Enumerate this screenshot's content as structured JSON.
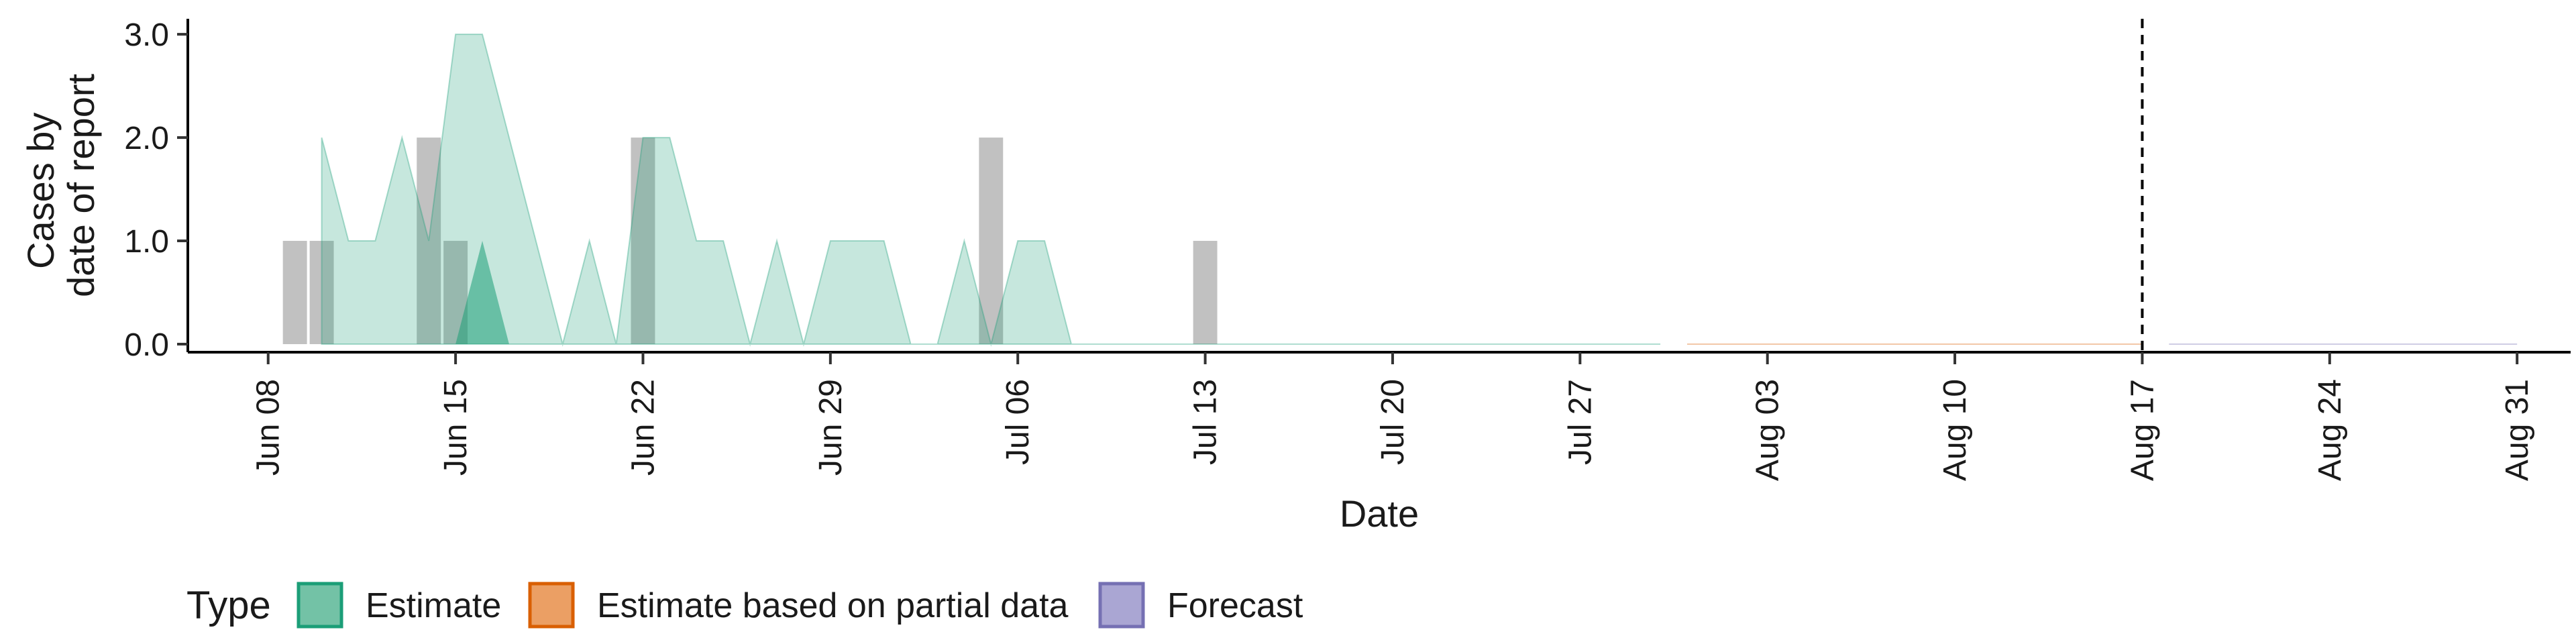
{
  "chart_data": {
    "type": "area",
    "xlabel": "Date",
    "ylabel": [
      "Cases by",
      "date of report"
    ],
    "ylim": [
      0,
      3.15
    ],
    "y_ticks": [
      {
        "value": 0,
        "label": "0.0"
      },
      {
        "value": 1,
        "label": "1.0"
      },
      {
        "value": 2,
        "label": "2.0"
      },
      {
        "value": 3,
        "label": "3.0"
      }
    ],
    "x_ticks": [
      {
        "date": "2020-06-08",
        "label": "Jun 08"
      },
      {
        "date": "2020-06-15",
        "label": "Jun 15"
      },
      {
        "date": "2020-06-22",
        "label": "Jun 22"
      },
      {
        "date": "2020-06-29",
        "label": "Jun 29"
      },
      {
        "date": "2020-07-06",
        "label": "Jul 06"
      },
      {
        "date": "2020-07-13",
        "label": "Jul 13"
      },
      {
        "date": "2020-07-20",
        "label": "Jul 20"
      },
      {
        "date": "2020-07-27",
        "label": "Jul 27"
      },
      {
        "date": "2020-08-03",
        "label": "Aug 03"
      },
      {
        "date": "2020-08-10",
        "label": "Aug 10"
      },
      {
        "date": "2020-08-17",
        "label": "Aug 17"
      },
      {
        "date": "2020-08-24",
        "label": "Aug 24"
      },
      {
        "date": "2020-08-31",
        "label": "Aug 31"
      }
    ],
    "x_range": [
      "2020-06-05",
      "2020-09-02"
    ],
    "reported_cases": [
      {
        "date": "2020-06-09",
        "value": 1
      },
      {
        "date": "2020-06-10",
        "value": 1
      },
      {
        "date": "2020-06-14",
        "value": 2
      },
      {
        "date": "2020-06-15",
        "value": 1
      },
      {
        "date": "2020-06-22",
        "value": 2
      },
      {
        "date": "2020-07-05",
        "value": 2
      },
      {
        "date": "2020-07-13",
        "value": 1
      }
    ],
    "series": [
      {
        "type": "Estimate",
        "color": "#1b9e77",
        "band_outer": [
          [
            "2020-06-10",
            0
          ],
          [
            "2020-06-10",
            2
          ],
          [
            "2020-06-11",
            1
          ],
          [
            "2020-06-12",
            1
          ],
          [
            "2020-06-13",
            2
          ],
          [
            "2020-06-14",
            1
          ],
          [
            "2020-06-15",
            3
          ],
          [
            "2020-06-16",
            3
          ],
          [
            "2020-06-19",
            0
          ],
          [
            "2020-06-20",
            1
          ],
          [
            "2020-06-21",
            0
          ],
          [
            "2020-06-22",
            2
          ],
          [
            "2020-06-23",
            2
          ],
          [
            "2020-06-24",
            1
          ],
          [
            "2020-06-25",
            1
          ],
          [
            "2020-06-26",
            0
          ],
          [
            "2020-06-27",
            1
          ],
          [
            "2020-06-28",
            0
          ],
          [
            "2020-06-29",
            1
          ],
          [
            "2020-07-01",
            1
          ],
          [
            "2020-07-02",
            0
          ],
          [
            "2020-07-03",
            0
          ],
          [
            "2020-07-04",
            1
          ],
          [
            "2020-07-05",
            0
          ],
          [
            "2020-07-06",
            1
          ],
          [
            "2020-07-07",
            1
          ],
          [
            "2020-07-08",
            0
          ],
          [
            "2020-07-30",
            0
          ]
        ],
        "band_inner": [
          [
            "2020-06-15",
            0
          ],
          [
            "2020-06-16",
            1
          ],
          [
            "2020-06-17",
            0
          ]
        ]
      },
      {
        "type": "Estimate based on partial data",
        "color": "#d95f02",
        "band_outer": [
          [
            "2020-07-31",
            0
          ],
          [
            "2020-08-17",
            0
          ]
        ]
      },
      {
        "type": "Forecast",
        "color": "#7570b3",
        "band_outer": [
          [
            "2020-08-18",
            0
          ],
          [
            "2020-08-31",
            0
          ]
        ]
      }
    ],
    "vline_date": "2020-08-17",
    "legend": {
      "title": "Type",
      "position": "bottom-left",
      "items": [
        {
          "label": "Estimate",
          "fill": "#73c2a6",
          "stroke": "#1b9e77"
        },
        {
          "label": "Estimate based on partial data",
          "fill": "#eb9f64",
          "stroke": "#d95f02"
        },
        {
          "label": "Forecast",
          "fill": "#aaa6d3",
          "stroke": "#7570b3"
        }
      ]
    },
    "grid": false
  }
}
